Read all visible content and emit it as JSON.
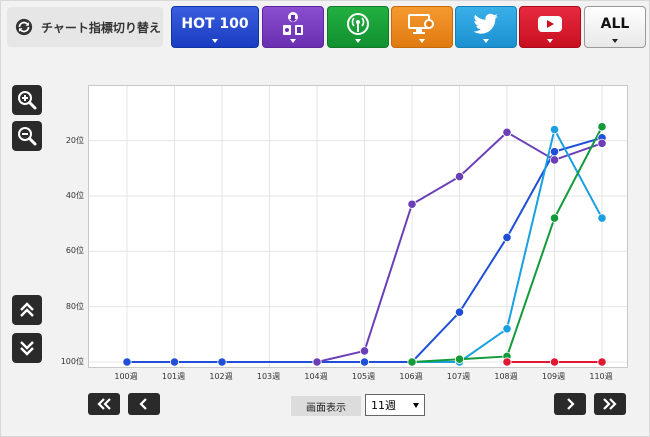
{
  "switcher": {
    "label": "チャート指標切り替え"
  },
  "tabs": [
    {
      "label": "HOT 100",
      "color": "#2447d0"
    },
    {
      "label": "",
      "icon": "download-icon",
      "color": "#7a3fc0"
    },
    {
      "label": "",
      "icon": "broadcast-icon",
      "color": "#1aa038"
    },
    {
      "label": "",
      "icon": "pc-lookup-icon",
      "color": "#ee8a20"
    },
    {
      "label": "",
      "icon": "twitter-icon",
      "color": "#2aa0dc"
    },
    {
      "label": "",
      "icon": "youtube-icon",
      "color": "#d81c30"
    },
    {
      "label": "ALL",
      "color": "#ffffff"
    }
  ],
  "bottom": {
    "display_label": "画面表示",
    "display_value": "11週"
  },
  "chart_data": {
    "type": "line",
    "categories": [
      "100週",
      "101週",
      "102週",
      "103週",
      "104週",
      "105週",
      "106週",
      "107週",
      "108週",
      "109週",
      "110週"
    ],
    "y_tick_labels": [
      "20位",
      "40位",
      "60位",
      "80位",
      "100位"
    ],
    "y_ticks": [
      20,
      40,
      60,
      80,
      100
    ],
    "ylim": [
      1,
      100
    ],
    "y_inverted": true,
    "grid": true,
    "series": [
      {
        "color": "#1f4fd8",
        "points": [
          [
            0,
            100
          ],
          [
            1,
            100
          ],
          [
            2,
            100
          ],
          [
            4,
            100
          ],
          [
            5,
            100
          ],
          [
            6,
            100
          ],
          [
            7,
            82
          ],
          [
            8,
            55
          ],
          [
            9,
            24
          ],
          [
            10,
            19
          ]
        ]
      },
      {
        "color": "#6a3fb8",
        "points": [
          [
            4,
            100
          ],
          [
            5,
            96
          ],
          [
            6,
            43
          ],
          [
            7,
            33
          ],
          [
            8,
            17
          ],
          [
            9,
            27
          ],
          [
            10,
            21
          ]
        ]
      },
      {
        "color": "#1aa0e0",
        "points": [
          [
            6,
            100
          ],
          [
            7,
            100
          ],
          [
            8,
            88
          ],
          [
            9,
            16
          ],
          [
            10,
            48
          ]
        ]
      },
      {
        "color": "#139a3a",
        "points": [
          [
            6,
            100
          ],
          [
            7,
            99
          ],
          [
            8,
            98
          ],
          [
            9,
            48
          ],
          [
            10,
            15
          ]
        ]
      },
      {
        "color": "#e01830",
        "points": [
          [
            8,
            100
          ],
          [
            9,
            100
          ],
          [
            10,
            100
          ]
        ]
      }
    ]
  }
}
